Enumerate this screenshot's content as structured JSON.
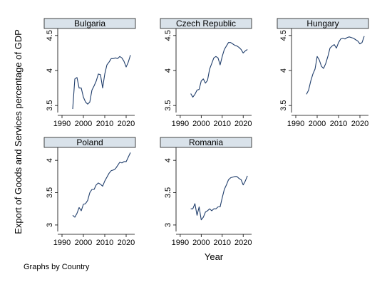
{
  "chart_data": {
    "type": "line",
    "ylabel": "Export of Goods and Services percentage of GDP",
    "xlabel": "Year",
    "note": "Graphs by Country",
    "panels": [
      {
        "title": "Bulgaria",
        "xlim": [
          1988,
          2024
        ],
        "ylim": [
          3.4,
          4.6
        ],
        "xticks": [
          1990,
          2000,
          2010,
          2020
        ],
        "xtick_labels": [
          "1990",
          "2000",
          "2010",
          "2020"
        ],
        "yticks": [
          3.5,
          4,
          4.5
        ],
        "ytick_labels": [
          "3.5",
          "4",
          "4.5"
        ],
        "series": [
          {
            "x": [
              1995,
              1996,
              1997,
              1998,
              1999,
              2000,
              2001,
              2002,
              2003,
              2004,
              2005,
              2006,
              2007,
              2008,
              2009,
              2010,
              2011,
              2012,
              2013,
              2014,
              2015,
              2016,
              2017,
              2018,
              2019,
              2020,
              2021,
              2022
            ],
            "y": [
              3.45,
              3.88,
              3.9,
              3.75,
              3.75,
              3.62,
              3.55,
              3.52,
              3.55,
              3.72,
              3.78,
              3.85,
              3.95,
              3.94,
              3.75,
              3.95,
              4.08,
              4.12,
              4.17,
              4.17,
              4.18,
              4.17,
              4.2,
              4.18,
              4.13,
              4.05,
              4.12,
              4.22
            ]
          }
        ]
      },
      {
        "title": "Czech Republic",
        "xlim": [
          1988,
          2024
        ],
        "ylim": [
          3.4,
          4.6
        ],
        "xticks": [
          1990,
          2000,
          2010,
          2020
        ],
        "xtick_labels": [
          "1990",
          "2000",
          "2010",
          "2020"
        ],
        "yticks": [
          3.5,
          4,
          4.5
        ],
        "ytick_labels": [
          "3.5",
          "4",
          "4.5"
        ],
        "series": [
          {
            "x": [
              1995,
              1996,
              1997,
              1998,
              1999,
              2000,
              2001,
              2002,
              2003,
              2004,
              2005,
              2006,
              2007,
              2008,
              2009,
              2010,
              2011,
              2012,
              2013,
              2014,
              2015,
              2016,
              2017,
              2018,
              2019,
              2020,
              2021,
              2022
            ],
            "y": [
              3.67,
              3.62,
              3.66,
              3.72,
              3.73,
              3.85,
              3.88,
              3.82,
              3.86,
              4.02,
              4.1,
              4.18,
              4.2,
              4.18,
              4.08,
              4.2,
              4.3,
              4.35,
              4.4,
              4.4,
              4.38,
              4.36,
              4.35,
              4.33,
              4.3,
              4.25,
              4.28,
              4.3
            ]
          }
        ]
      },
      {
        "title": "Hungary",
        "xlim": [
          1988,
          2024
        ],
        "ylim": [
          3.4,
          4.6
        ],
        "xticks": [
          1990,
          2000,
          2010,
          2020
        ],
        "xtick_labels": [
          "1990",
          "2000",
          "2010",
          "2020"
        ],
        "yticks": [
          3.5,
          4,
          4.5
        ],
        "ytick_labels": [
          "3.5",
          "4",
          "4.5"
        ],
        "series": [
          {
            "x": [
              1995,
              1996,
              1997,
              1998,
              1999,
              2000,
              2001,
              2002,
              2003,
              2004,
              2005,
              2006,
              2007,
              2008,
              2009,
              2010,
              2011,
              2012,
              2013,
              2014,
              2015,
              2016,
              2017,
              2018,
              2019,
              2020,
              2021,
              2022
            ],
            "y": [
              3.66,
              3.72,
              3.85,
              3.95,
              4.02,
              4.2,
              4.15,
              4.06,
              4.03,
              4.1,
              4.2,
              4.32,
              4.35,
              4.37,
              4.32,
              4.4,
              4.45,
              4.46,
              4.45,
              4.47,
              4.48,
              4.47,
              4.46,
              4.44,
              4.42,
              4.38,
              4.4,
              4.49
            ]
          }
        ]
      },
      {
        "title": "Poland",
        "xlim": [
          1988,
          2024
        ],
        "ylim": [
          2.9,
          4.2
        ],
        "xticks": [
          1990,
          2000,
          2010,
          2020
        ],
        "xtick_labels": [
          "1990",
          "2000",
          "2010",
          "2020"
        ],
        "yticks": [
          3,
          3.5,
          4
        ],
        "ytick_labels": [
          "3",
          "3.5",
          "4"
        ],
        "series": [
          {
            "x": [
              1995,
              1996,
              1997,
              1998,
              1999,
              2000,
              2001,
              2002,
              2003,
              2004,
              2005,
              2006,
              2007,
              2008,
              2009,
              2010,
              2011,
              2012,
              2013,
              2014,
              2015,
              2016,
              2017,
              2018,
              2019,
              2020,
              2021,
              2022
            ],
            "y": [
              3.15,
              3.12,
              3.18,
              3.27,
              3.22,
              3.32,
              3.33,
              3.38,
              3.5,
              3.55,
              3.55,
              3.62,
              3.65,
              3.63,
              3.6,
              3.68,
              3.74,
              3.8,
              3.84,
              3.85,
              3.87,
              3.92,
              3.97,
              3.96,
              3.98,
              3.98,
              4.05,
              4.12
            ]
          }
        ]
      },
      {
        "title": "Romania",
        "xlim": [
          1988,
          2024
        ],
        "ylim": [
          2.9,
          4.2
        ],
        "xticks": [
          1990,
          2000,
          2010,
          2020
        ],
        "xtick_labels": [
          "1990",
          "2000",
          "2010",
          "2020"
        ],
        "yticks": [
          3,
          3.5,
          4
        ],
        "ytick_labels": [
          "3",
          "3.5",
          "4"
        ],
        "series": [
          {
            "x": [
              1995,
              1996,
              1997,
              1998,
              1999,
              2000,
              2001,
              2002,
              2003,
              2004,
              2005,
              2006,
              2007,
              2008,
              2009,
              2010,
              2011,
              2012,
              2013,
              2014,
              2015,
              2016,
              2017,
              2018,
              2019,
              2020,
              2021,
              2022
            ],
            "y": [
              3.25,
              3.25,
              3.33,
              3.15,
              3.28,
              3.08,
              3.12,
              3.2,
              3.22,
              3.25,
              3.22,
              3.25,
              3.25,
              3.28,
              3.28,
              3.42,
              3.55,
              3.62,
              3.7,
              3.73,
              3.74,
              3.75,
              3.75,
              3.72,
              3.7,
              3.62,
              3.68,
              3.76
            ]
          }
        ]
      }
    ]
  }
}
